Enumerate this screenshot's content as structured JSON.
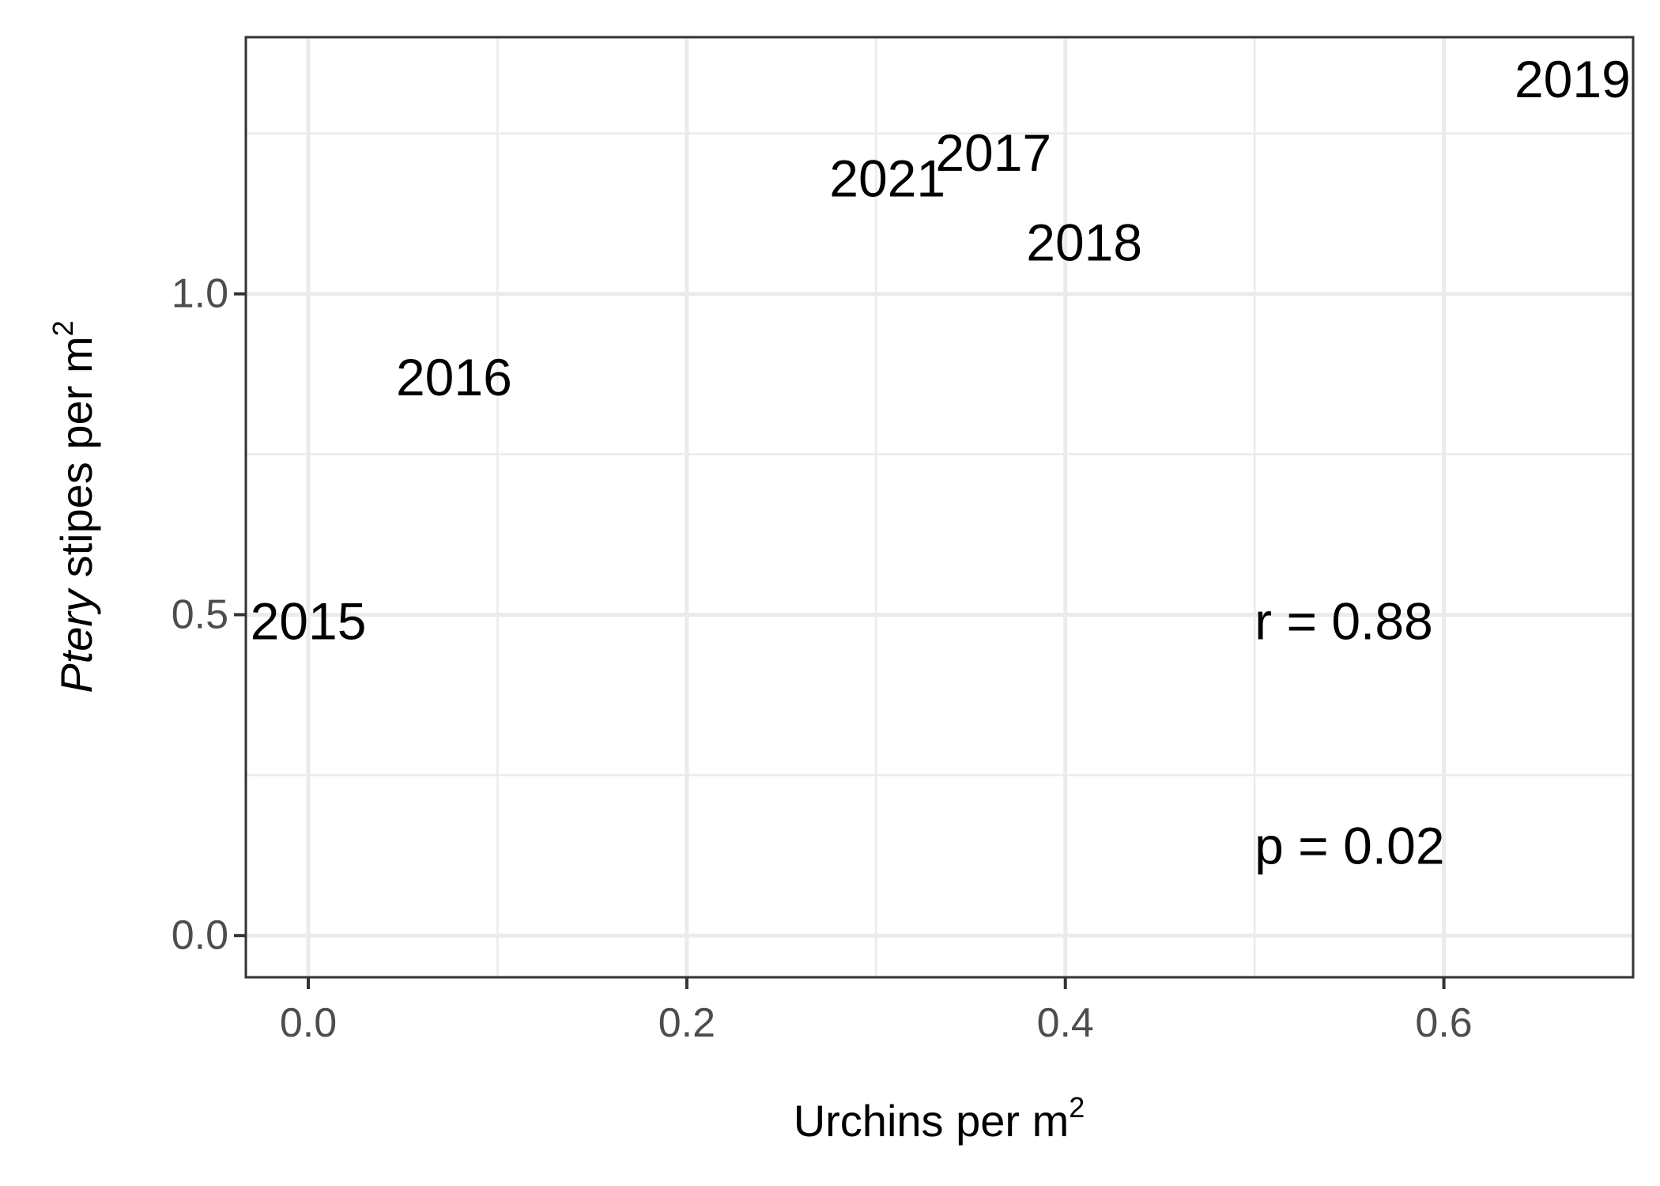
{
  "chart_data": {
    "type": "scatter",
    "xlabel": "Urchins per m",
    "xlabel_sup": "2",
    "ylabel_italic": "Ptery",
    "ylabel": " stipes per m",
    "ylabel_sup": "2",
    "xlim": [
      -0.033,
      0.7
    ],
    "ylim": [
      -0.065,
      1.4
    ],
    "x_ticks": [
      0.0,
      0.2,
      0.4,
      0.6
    ],
    "x_tick_labels": [
      "0.0",
      "0.2",
      "0.4",
      "0.6"
    ],
    "x_minor": [
      0.1,
      0.3,
      0.5
    ],
    "y_ticks": [
      0.0,
      0.5,
      1.0
    ],
    "y_tick_labels": [
      "0.0",
      "0.5",
      "1.0"
    ],
    "y_minor": [
      0.25,
      0.75,
      1.25
    ],
    "grid": true,
    "points": [
      {
        "label": "2015",
        "x": 0.0,
        "y": 0.49
      },
      {
        "label": "2016",
        "x": 0.077,
        "y": 0.87
      },
      {
        "label": "2017",
        "x": 0.362,
        "y": 1.22
      },
      {
        "label": "2018",
        "x": 0.41,
        "y": 1.08
      },
      {
        "label": "2019",
        "x": 0.668,
        "y": 1.335
      },
      {
        "label": "2021",
        "x": 0.306,
        "y": 1.18
      }
    ],
    "annotations": [
      {
        "text": "r = 0.88",
        "x": 0.5,
        "y": 0.49
      },
      {
        "text": "p = 0.02",
        "x": 0.5,
        "y": 0.14
      }
    ]
  }
}
